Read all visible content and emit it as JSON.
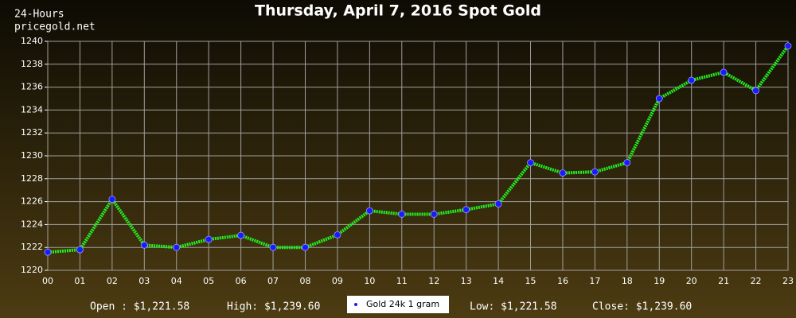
{
  "chart_data": {
    "type": "line",
    "title": "Thursday, April 7, 2016 Spot Gold",
    "header": [
      "24-Hours",
      "pricegold.net"
    ],
    "categories": [
      "00",
      "01",
      "02",
      "03",
      "04",
      "05",
      "06",
      "07",
      "08",
      "09",
      "10",
      "11",
      "12",
      "13",
      "14",
      "15",
      "16",
      "17",
      "18",
      "19",
      "20",
      "21",
      "22",
      "23"
    ],
    "series": [
      {
        "name": "Gold 24k 1 gram",
        "color": "#22ee22",
        "marker_color": "#1a1aff",
        "values": [
          1221.58,
          1221.8,
          1226.2,
          1222.2,
          1222.0,
          1222.7,
          1223.05,
          1222.0,
          1222.0,
          1223.1,
          1225.2,
          1224.9,
          1224.9,
          1225.3,
          1225.8,
          1229.4,
          1228.5,
          1228.6,
          1229.4,
          1235.0,
          1236.6,
          1237.3,
          1235.7,
          1239.6
        ]
      }
    ],
    "ylim": [
      1220,
      1240
    ],
    "yticks": [
      1220,
      1222,
      1224,
      1226,
      1228,
      1230,
      1232,
      1234,
      1236,
      1238,
      1240
    ],
    "grid": true,
    "stats": [
      "Open : $1,221.58",
      "High: $1,239.60",
      "Low: $1,221.58",
      "Close: $1,239.60"
    ]
  }
}
